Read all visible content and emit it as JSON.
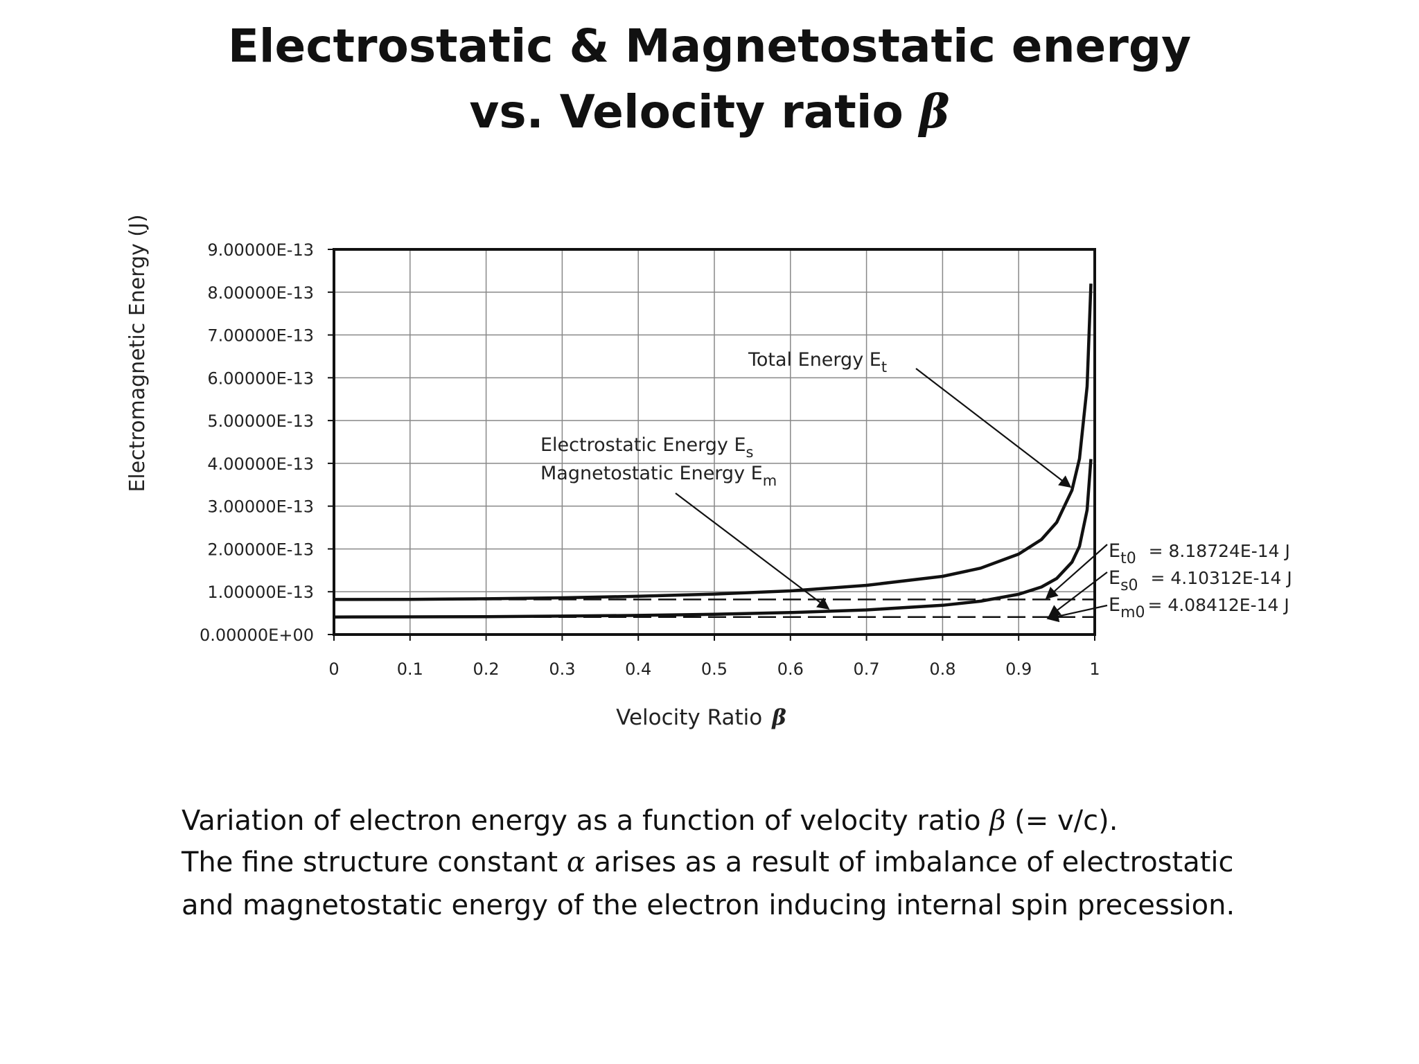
{
  "title": {
    "line1": "Electrostatic & Magnetostatic energy",
    "line2_prefix": "vs.  Velocity ratio ",
    "line2_symbol": "β"
  },
  "chart_data": {
    "type": "line",
    "xlabel": "Velocity Ratio",
    "xlabel_symbol": "β",
    "ylabel": "Electromagnetic  Energy    (J)",
    "xlim": [
      0,
      1
    ],
    "ylim": [
      0,
      9e-13
    ],
    "x_ticks": [
      "0",
      "0.1",
      "0.2",
      "0.3",
      "0.4",
      "0.5",
      "0.6",
      "0.7",
      "0.8",
      "0.9",
      "1"
    ],
    "y_ticks": [
      "0.00000E+00",
      "1.00000E-13",
      "2.00000E-13",
      "3.00000E-13",
      "4.00000E-13",
      "5.00000E-13",
      "6.00000E-13",
      "7.00000E-13",
      "8.00000E-13",
      "9.00000E-13"
    ],
    "grid": true,
    "legend": "none",
    "series": [
      {
        "label": "Total Energy",
        "style": "solid",
        "x": [
          0,
          0.1,
          0.2,
          0.3,
          0.4,
          0.5,
          0.6,
          0.7,
          0.8,
          0.85,
          0.9,
          0.93,
          0.95,
          0.97,
          0.98,
          0.99,
          0.995
        ],
        "y": [
          8.19e-14,
          8.23e-14,
          8.36e-14,
          8.58e-14,
          8.93e-14,
          9.45e-14,
          1.02e-13,
          1.15e-13,
          1.36e-13,
          1.55e-13,
          1.88e-13,
          2.22e-13,
          2.62e-13,
          3.37e-13,
          4.11e-13,
          5.8e-13,
          8.2e-13
        ]
      },
      {
        "label": "Electrostatic / Magnetostatic Energy",
        "style": "solid",
        "x": [
          0,
          0.1,
          0.2,
          0.3,
          0.4,
          0.5,
          0.6,
          0.7,
          0.8,
          0.85,
          0.9,
          0.93,
          0.95,
          0.97,
          0.98,
          0.99,
          0.995
        ],
        "y": [
          4.1e-14,
          4.12e-14,
          4.18e-14,
          4.3e-14,
          4.47e-14,
          4.73e-14,
          5.13e-14,
          5.74e-14,
          6.83e-14,
          7.79e-14,
          9.41e-14,
          1.11e-13,
          1.31e-13,
          1.69e-13,
          2.06e-13,
          2.91e-13,
          4.1e-13
        ]
      },
      {
        "label": "Et0 reference",
        "style": "dashed",
        "x": [
          0,
          1
        ],
        "y": [
          8.18724e-14,
          8.18724e-14
        ]
      },
      {
        "label": "Es0 / Em0 reference",
        "style": "dashed",
        "x": [
          0,
          1
        ],
        "y": [
          4.1e-14,
          4.1e-14
        ]
      }
    ],
    "annotations": {
      "total": {
        "text": "Total Energy E",
        "sub": "t"
      },
      "es": {
        "text": "Electrostatic Energy E",
        "sub": "s"
      },
      "em": {
        "text": "Magnetostatic Energy E",
        "sub": "m"
      },
      "et0": {
        "sym": "E",
        "sub": "t0",
        "value": " = 8.18724E-14 J"
      },
      "es0": {
        "sym": "E",
        "sub": "s0",
        "value": " = 4.10312E-14 J"
      },
      "em0": {
        "sym": "E",
        "sub": "m0",
        "value": "= 4.08412E-14 J"
      }
    }
  },
  "caption": {
    "line1_a": "Variation of electron energy as a function of velocity ratio ",
    "line1_sym": "β",
    "line1_b": " (= v/c).",
    "line2_a": "The fine structure constant ",
    "line2_sym": "α",
    "line2_b": " arises as a result of imbalance of electrostatic",
    "line3": "and magnetostatic energy of the electron inducing internal spin precession."
  }
}
